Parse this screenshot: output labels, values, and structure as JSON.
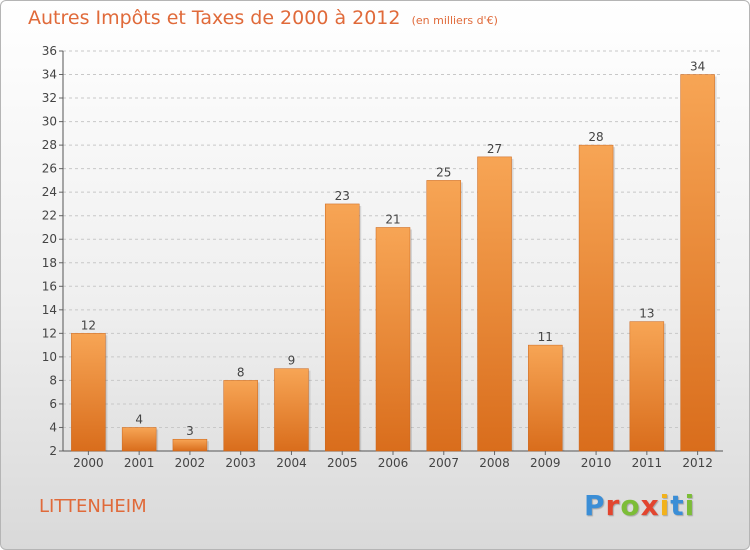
{
  "title": "Autres Impôts et Taxes de 2000 à 2012",
  "subtitle": "(en milliers d'€)",
  "location": "LITTENHEIM",
  "logo": {
    "letters": [
      "P",
      "r",
      "o",
      "x",
      "i",
      "t",
      "i"
    ],
    "colors": [
      "#3b8ed6",
      "#e2452f",
      "#7cbd37",
      "#e2452f",
      "#f2b21b",
      "#3b8ed6",
      "#7cbd37"
    ]
  },
  "colors": {
    "bar": "#f0903a",
    "title": "#e06a3a",
    "grid": "#c8c8c8"
  },
  "chart_data": {
    "type": "bar",
    "title": "Autres Impôts et Taxes de 2000 à 2012",
    "subtitle": "(en milliers d'€)",
    "categories": [
      "2000",
      "2001",
      "2002",
      "2003",
      "2004",
      "2005",
      "2006",
      "2007",
      "2008",
      "2009",
      "2010",
      "2011",
      "2012"
    ],
    "values": [
      12,
      4,
      3,
      8,
      9,
      23,
      21,
      25,
      27,
      11,
      28,
      13,
      34
    ],
    "ylim": [
      2,
      36
    ],
    "yticks": [
      2,
      4,
      6,
      8,
      10,
      12,
      14,
      16,
      18,
      20,
      22,
      24,
      26,
      28,
      30,
      32,
      34,
      36
    ],
    "grid": true,
    "xlabel": "",
    "ylabel": ""
  }
}
